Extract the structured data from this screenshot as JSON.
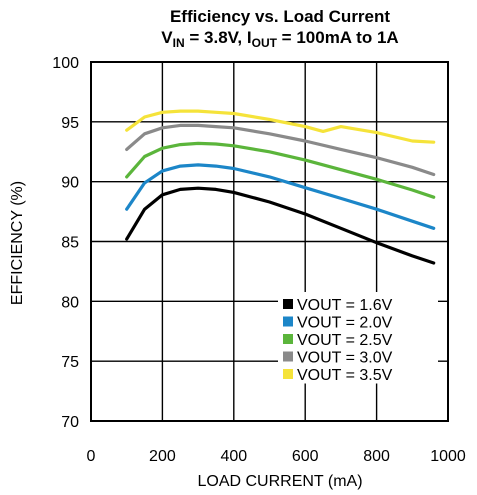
{
  "chart_data": {
    "type": "line",
    "title_line1": "Efficiency vs. Load Current",
    "title_line2": {
      "vin_main": "V",
      "vin_sub": "IN",
      "vin_rest": " = 3.8V, I",
      "iout_sub": "OUT",
      "iout_rest": " = 100mA to 1A"
    },
    "xlabel": "LOAD CURRENT (mA)",
    "ylabel": "EFFICIENCY (%)",
    "xlim": [
      0,
      1000
    ],
    "ylim": [
      70,
      100
    ],
    "xticks": [
      "0",
      "200",
      "400",
      "600",
      "800",
      "1000"
    ],
    "yticks": [
      "70",
      "75",
      "80",
      "85",
      "90",
      "95",
      "100"
    ],
    "grid": true,
    "legend_position": "bottom-right",
    "series": [
      {
        "name": "VOUT = 1.6V",
        "color": "#000000",
        "x": [
          100,
          150,
          200,
          250,
          300,
          350,
          400,
          500,
          600,
          700,
          800,
          900,
          960
        ],
        "y": [
          85.2,
          87.7,
          88.9,
          89.35,
          89.45,
          89.35,
          89.1,
          88.3,
          87.3,
          86.1,
          84.9,
          83.8,
          83.2
        ]
      },
      {
        "name": "VOUT = 2.0V",
        "color": "#1C86C8",
        "x": [
          100,
          150,
          200,
          250,
          300,
          350,
          400,
          500,
          600,
          700,
          800,
          900,
          960
        ],
        "y": [
          87.7,
          89.9,
          90.9,
          91.3,
          91.4,
          91.3,
          91.1,
          90.4,
          89.5,
          88.6,
          87.7,
          86.7,
          86.1
        ]
      },
      {
        "name": "VOUT = 2.5V",
        "color": "#5BB53B",
        "x": [
          100,
          150,
          200,
          250,
          300,
          350,
          400,
          500,
          600,
          700,
          800,
          900,
          960
        ],
        "y": [
          90.4,
          92.1,
          92.8,
          93.1,
          93.2,
          93.15,
          93.0,
          92.5,
          91.8,
          91.0,
          90.2,
          89.3,
          88.7
        ]
      },
      {
        "name": "VOUT = 3.0V",
        "color": "#8A8A8A",
        "x": [
          100,
          150,
          200,
          250,
          300,
          350,
          400,
          500,
          600,
          700,
          800,
          900,
          960
        ],
        "y": [
          92.7,
          94.0,
          94.5,
          94.7,
          94.7,
          94.6,
          94.5,
          94.0,
          93.4,
          92.7,
          92.0,
          91.2,
          90.6
        ]
      },
      {
        "name": "VOUT = 3.5V",
        "color": "#F5E33A",
        "x": [
          100,
          150,
          200,
          250,
          300,
          350,
          400,
          500,
          600,
          650,
          700,
          800,
          900,
          960
        ],
        "y": [
          94.3,
          95.4,
          95.8,
          95.9,
          95.9,
          95.8,
          95.7,
          95.2,
          94.6,
          94.2,
          94.6,
          94.1,
          93.4,
          93.3
        ]
      }
    ]
  }
}
